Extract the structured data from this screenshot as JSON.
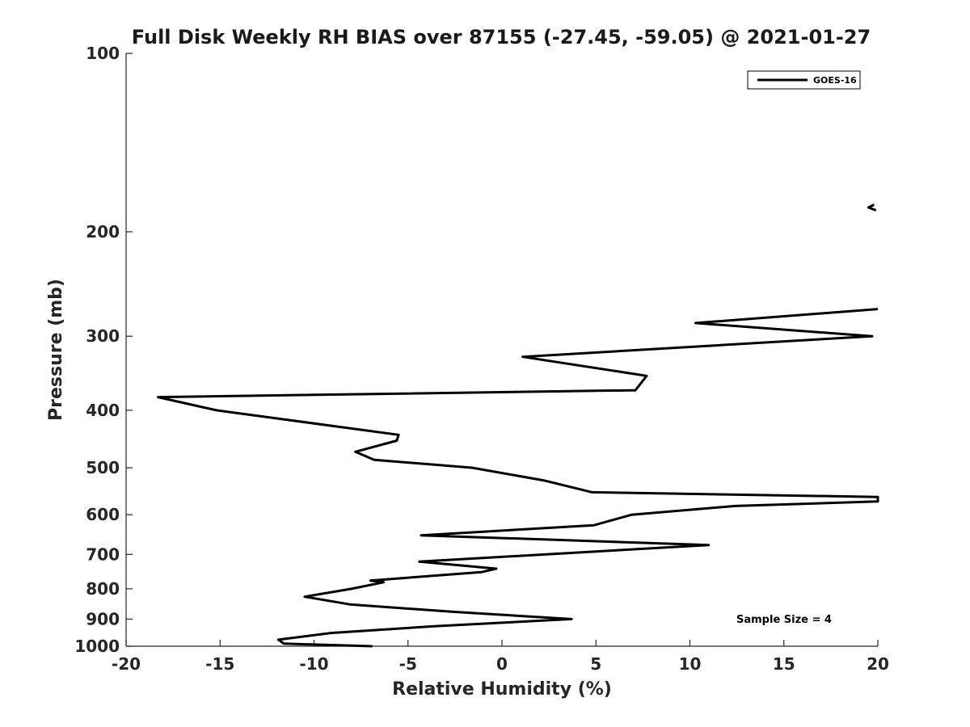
{
  "chart_data": {
    "type": "line",
    "title": "Full Disk Weekly RH BIAS over 87155 (-27.45, -59.05) @ 2021-01-27",
    "xlabel": "Relative Humidity (%)",
    "ylabel": "Pressure (mb)",
    "xlim": [
      -20,
      20
    ],
    "ylim": [
      100,
      1000
    ],
    "yscale": "log",
    "yreversed": true,
    "xticks": [
      -20,
      -15,
      -10,
      -5,
      0,
      5,
      10,
      15,
      20
    ],
    "xtick_labels": [
      "-20",
      "-15",
      "-10",
      "-5",
      "0",
      "5",
      "10",
      "15",
      "20"
    ],
    "yticks": [
      100,
      200,
      300,
      400,
      500,
      600,
      700,
      800,
      900,
      1000
    ],
    "ytick_labels": [
      "100",
      "200",
      "300",
      "400",
      "500",
      "600",
      "700",
      "800",
      "900",
      "1000"
    ],
    "grid": false,
    "legend_position": "top-right",
    "annotation": "Sample Size = 4",
    "series": [
      {
        "name": "GOES-16",
        "color": "#000000",
        "segments": [
          {
            "x": [
              19.8,
              19.5,
              19.9
            ],
            "y": [
              180,
              182,
              184
            ]
          },
          {
            "x": [
              -6.9,
              -11.6,
              -11.9,
              -9.1,
              -3.5,
              3.7,
              -2.6,
              -8.1,
              -10.5,
              -8.0,
              -6.3,
              -7.0,
              -1.1,
              -0.3,
              -4.4,
              11.0,
              -4.3,
              4.9,
              6.9,
              12.4,
              20.0,
              20.0,
              4.8,
              2.2,
              -1.6,
              -6.8,
              -7.8,
              -5.6,
              -5.5,
              -15.2,
              -18.3,
              7.1,
              7.7,
              1.1,
              19.7,
              10.3,
              20.0
            ],
            "y": [
              1000,
              990,
              975,
              950,
              925,
              900,
              875,
              850,
              825,
              800,
              780,
              775,
              750,
              740,
              720,
              675,
              650,
              625,
              600,
              580,
              570,
              560,
              550,
              525,
              500,
              485,
              470,
              450,
              440,
              400,
              380,
              370,
              350,
              325,
              300,
              285,
              270
            ]
          }
        ]
      }
    ]
  }
}
